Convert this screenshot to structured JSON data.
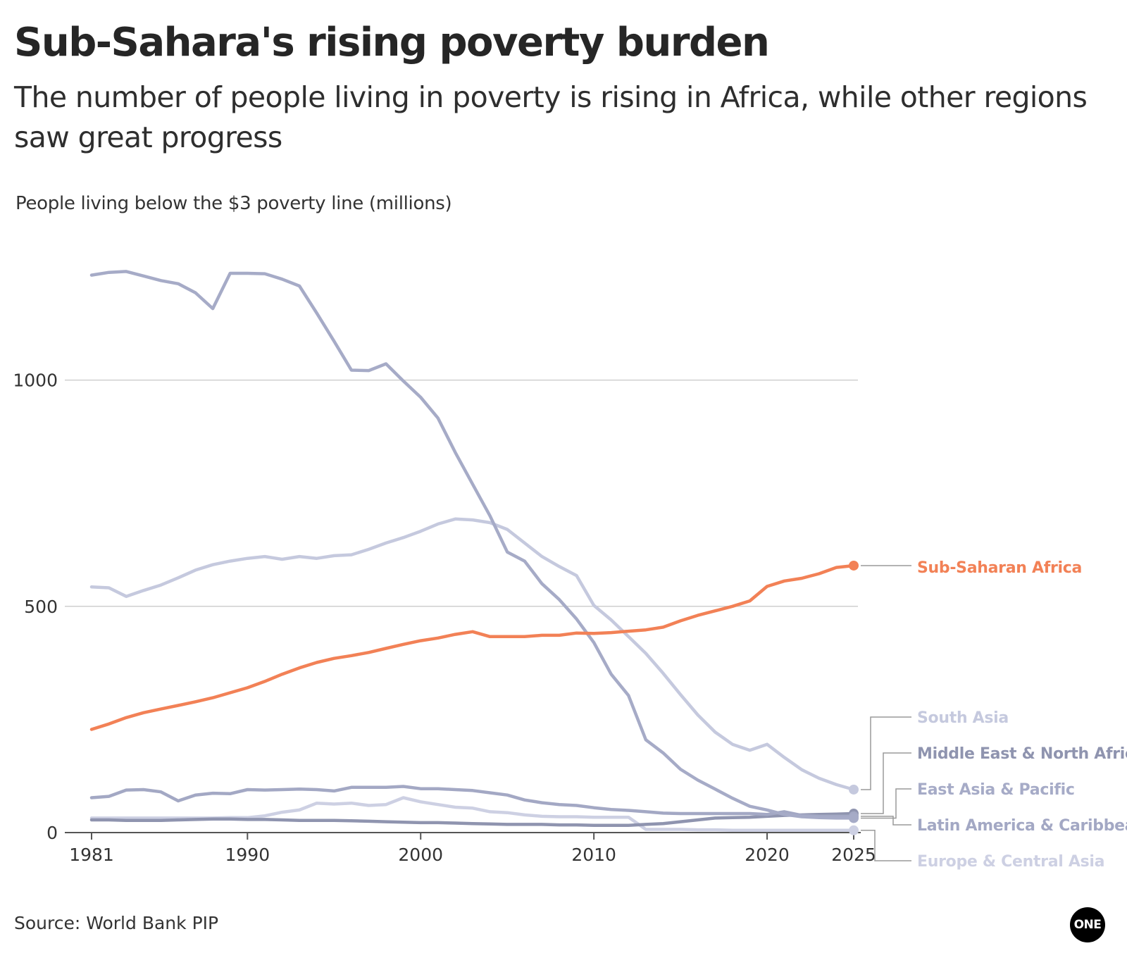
{
  "title": "Sub-Sahara's rising poverty burden",
  "subtitle": "The number of people living in poverty is rising in Africa, while other regions saw great progress",
  "source": "Source: World Bank PIP",
  "logo_text": "ONE",
  "chart_data": {
    "type": "line",
    "title": "Sub-Sahara's rising poverty burden",
    "ylabel": "People living below the $3 poverty line (millions)",
    "xlabel": "",
    "xlim": [
      1981,
      2025
    ],
    "ylim": [
      0,
      1250
    ],
    "xticks": [
      1981,
      1990,
      2000,
      2010,
      2020,
      2025
    ],
    "yticks": [
      0,
      500,
      1000
    ],
    "grid": "horizontal",
    "legend": "direct labels at right",
    "series": [
      {
        "name": "East Asia & Pacific",
        "color": "#a6abc7",
        "x": [
          1981,
          1982,
          1983,
          1984,
          1985,
          1986,
          1987,
          1988,
          1989,
          1990,
          1991,
          1992,
          1993,
          1994,
          1995,
          1996,
          1997,
          1998,
          1999,
          2000,
          2001,
          2002,
          2003,
          2004,
          2005,
          2006,
          2007,
          2008,
          2009,
          2010,
          2011,
          2012,
          2013,
          2014,
          2015,
          2016,
          2017,
          2018,
          2019,
          2020,
          2021,
          2022,
          2023,
          2024,
          2025
        ],
        "values": [
          1232,
          1238,
          1240,
          1230,
          1220,
          1213,
          1193,
          1158,
          1236,
          1236,
          1235,
          1223,
          1208,
          1148,
          1086,
          1022,
          1021,
          1036,
          998,
          962,
          916,
          840,
          770,
          700,
          620,
          600,
          550,
          515,
          472,
          420,
          350,
          303,
          205,
          176,
          140,
          116,
          96,
          76,
          58,
          50,
          40,
          35,
          33,
          32,
          32
        ]
      },
      {
        "name": "South Asia",
        "color": "#c5c9de",
        "x": [
          1981,
          1982,
          1983,
          1984,
          1985,
          1986,
          1987,
          1988,
          1989,
          1990,
          1991,
          1992,
          1993,
          1994,
          1995,
          1996,
          1997,
          1998,
          1999,
          2000,
          2001,
          2002,
          2003,
          2004,
          2005,
          2006,
          2007,
          2008,
          2009,
          2010,
          2011,
          2012,
          2013,
          2014,
          2015,
          2016,
          2017,
          2018,
          2019,
          2020,
          2021,
          2022,
          2023,
          2024,
          2025
        ],
        "values": [
          543,
          541,
          522,
          535,
          547,
          563,
          580,
          592,
          600,
          606,
          610,
          604,
          610,
          606,
          612,
          614,
          626,
          640,
          652,
          666,
          682,
          693,
          691,
          685,
          670,
          640,
          610,
          588,
          568,
          502,
          470,
          433,
          396,
          352,
          305,
          260,
          222,
          195,
          182,
          195,
          166,
          139,
          120,
          106,
          95
        ]
      },
      {
        "name": "Sub-Saharan Africa",
        "color": "#f28156",
        "x": [
          1981,
          1982,
          1983,
          1984,
          1985,
          1986,
          1987,
          1988,
          1989,
          1990,
          1991,
          1992,
          1993,
          1994,
          1995,
          1996,
          1997,
          1998,
          1999,
          2000,
          2001,
          2002,
          2003,
          2004,
          2005,
          2006,
          2007,
          2008,
          2009,
          2010,
          2011,
          2012,
          2013,
          2014,
          2015,
          2016,
          2017,
          2018,
          2019,
          2020,
          2021,
          2022,
          2023,
          2024,
          2025
        ],
        "values": [
          228,
          240,
          254,
          265,
          273,
          281,
          289,
          298,
          309,
          320,
          334,
          350,
          364,
          376,
          385,
          391,
          398,
          407,
          416,
          424,
          430,
          438,
          444,
          433,
          433,
          433,
          436,
          436,
          441,
          440,
          442,
          445,
          448,
          454,
          468,
          480,
          490,
          500,
          512,
          544,
          556,
          562,
          572,
          586,
          590
        ]
      },
      {
        "name": "Middle East & North Africa",
        "color": "#8f94af",
        "x": [
          1981,
          1982,
          1983,
          1984,
          1985,
          1986,
          1987,
          1988,
          1989,
          1990,
          1991,
          1992,
          1993,
          1994,
          1995,
          1996,
          1997,
          1998,
          1999,
          2000,
          2001,
          2002,
          2003,
          2004,
          2005,
          2006,
          2007,
          2008,
          2009,
          2010,
          2011,
          2012,
          2013,
          2014,
          2015,
          2016,
          2017,
          2018,
          2019,
          2020,
          2021,
          2022,
          2023,
          2024,
          2025
        ],
        "values": [
          28,
          28,
          27,
          27,
          27,
          28,
          29,
          30,
          30,
          29,
          29,
          28,
          27,
          27,
          27,
          26,
          25,
          24,
          23,
          22,
          22,
          21,
          20,
          19,
          18,
          18,
          18,
          17,
          17,
          16,
          16,
          16,
          18,
          20,
          24,
          28,
          32,
          33,
          34,
          36,
          38,
          39,
          40,
          41,
          42
        ]
      },
      {
        "name": "Latin America & Caribbean",
        "color": "#a3a8c4",
        "x": [
          1981,
          1982,
          1983,
          1984,
          1985,
          1986,
          1987,
          1988,
          1989,
          1990,
          1991,
          1992,
          1993,
          1994,
          1995,
          1996,
          1997,
          1998,
          1999,
          2000,
          2001,
          2002,
          2003,
          2004,
          2005,
          2006,
          2007,
          2008,
          2009,
          2010,
          2011,
          2012,
          2013,
          2014,
          2015,
          2016,
          2017,
          2018,
          2019,
          2020,
          2021,
          2022,
          2023,
          2024,
          2025
        ],
        "values": [
          77,
          80,
          94,
          95,
          90,
          70,
          83,
          87,
          86,
          95,
          94,
          95,
          96,
          95,
          92,
          100,
          100,
          100,
          102,
          97,
          97,
          95,
          93,
          88,
          83,
          72,
          66,
          62,
          60,
          55,
          51,
          49,
          46,
          43,
          42,
          42,
          42,
          42,
          42,
          40,
          46,
          38,
          36,
          36,
          36
        ]
      },
      {
        "name": "Europe & Central Asia",
        "color": "#cdd0e3",
        "x": [
          1981,
          1982,
          1983,
          1984,
          1985,
          1986,
          1987,
          1988,
          1989,
          1990,
          1991,
          1992,
          1993,
          1994,
          1995,
          1996,
          1997,
          1998,
          1999,
          2000,
          2001,
          2002,
          2003,
          2004,
          2005,
          2006,
          2007,
          2008,
          2009,
          2010,
          2011,
          2012,
          2013,
          2014,
          2015,
          2016,
          2017,
          2018,
          2019,
          2020,
          2021,
          2022,
          2023,
          2024,
          2025
        ],
        "values": [
          32,
          32,
          32,
          32,
          32,
          32,
          32,
          32,
          33,
          33,
          37,
          45,
          50,
          65,
          63,
          65,
          60,
          62,
          77,
          68,
          62,
          56,
          54,
          46,
          44,
          39,
          36,
          35,
          35,
          34,
          34,
          34,
          7,
          7,
          7,
          6,
          6,
          5,
          5,
          5,
          5,
          5,
          5,
          5,
          5
        ]
      }
    ]
  }
}
